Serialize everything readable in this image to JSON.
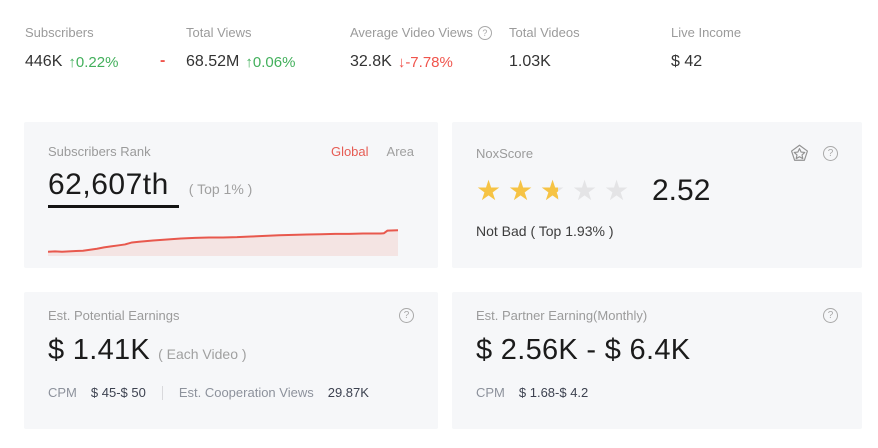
{
  "stats": {
    "items": [
      {
        "label": "Subscribers",
        "value": "446K",
        "change": "0.22%",
        "direction": "up"
      },
      {
        "label": "Total Views",
        "value": "68.52M",
        "change": "0.06%",
        "direction": "up"
      },
      {
        "label": "Average Video Views",
        "value": "32.8K",
        "change": "-7.78%",
        "direction": "down"
      },
      {
        "label": "Total Videos",
        "value": "1.03K"
      },
      {
        "label": "Live Income",
        "value": "$ 42"
      }
    ],
    "dash_separator": "-"
  },
  "cards": {
    "subscribers_rank": {
      "title": "Subscribers Rank",
      "tabs": [
        {
          "label": "Global",
          "active": true
        },
        {
          "label": "Area",
          "active": false
        }
      ],
      "rank": "62,607th",
      "rank_note": "( Top 1% )"
    },
    "noxscore": {
      "title": "NoxScore",
      "score": "2.52",
      "stars_value": 2.5,
      "note": "Not Bad ( Top 1.93% )"
    },
    "potential_earnings": {
      "title": "Est. Potential Earnings",
      "amount": "$ 1.41K",
      "amount_note": "( Each Video )",
      "cpm_label": "CPM",
      "cpm_value": "$ 45-$ 50",
      "coop_label": "Est. Cooperation Views",
      "coop_value": "29.87K"
    },
    "partner_earnings": {
      "title": "Est. Partner Earning(Monthly)",
      "amount": "$ 2.56K - $ 6.4K",
      "cpm_label": "CPM",
      "cpm_value": "$ 1.68-$ 4.2"
    }
  },
  "chart_data": {
    "type": "area",
    "title": "Subscribers Rank trend (unlabeled sparkline, rising left to right)",
    "x_percent": [
      0,
      2,
      4,
      6,
      8,
      10,
      12,
      14,
      16,
      18,
      20,
      22,
      24,
      26,
      28,
      30,
      34,
      38,
      42,
      46,
      50,
      54,
      58,
      62,
      66,
      70,
      74,
      78,
      82,
      86,
      90,
      93,
      95,
      96,
      97,
      100
    ],
    "y_normalized": [
      0.1,
      0.11,
      0.1,
      0.11,
      0.12,
      0.13,
      0.16,
      0.19,
      0.23,
      0.26,
      0.29,
      0.32,
      0.38,
      0.4,
      0.42,
      0.44,
      0.47,
      0.5,
      0.52,
      0.53,
      0.53,
      0.54,
      0.56,
      0.58,
      0.6,
      0.61,
      0.62,
      0.63,
      0.64,
      0.64,
      0.65,
      0.65,
      0.65,
      0.66,
      0.74,
      0.75
    ],
    "line_color": "#e8584d",
    "fill_color": "rgba(232,88,77,0.12)",
    "axes_visible": false,
    "grid": false
  },
  "icons": {
    "star": "★",
    "up_arrow": "↑",
    "down_arrow": "↓",
    "help": "?"
  },
  "colors": {
    "positive_green": "#43b05c",
    "negative_red": "#f0544c",
    "accent_red": "#e65c54",
    "star_yellow": "#f6c344",
    "card_bg": "#f6f7f9",
    "label_gray": "#9b9b9b",
    "dark_text": "#1b1b1b"
  }
}
